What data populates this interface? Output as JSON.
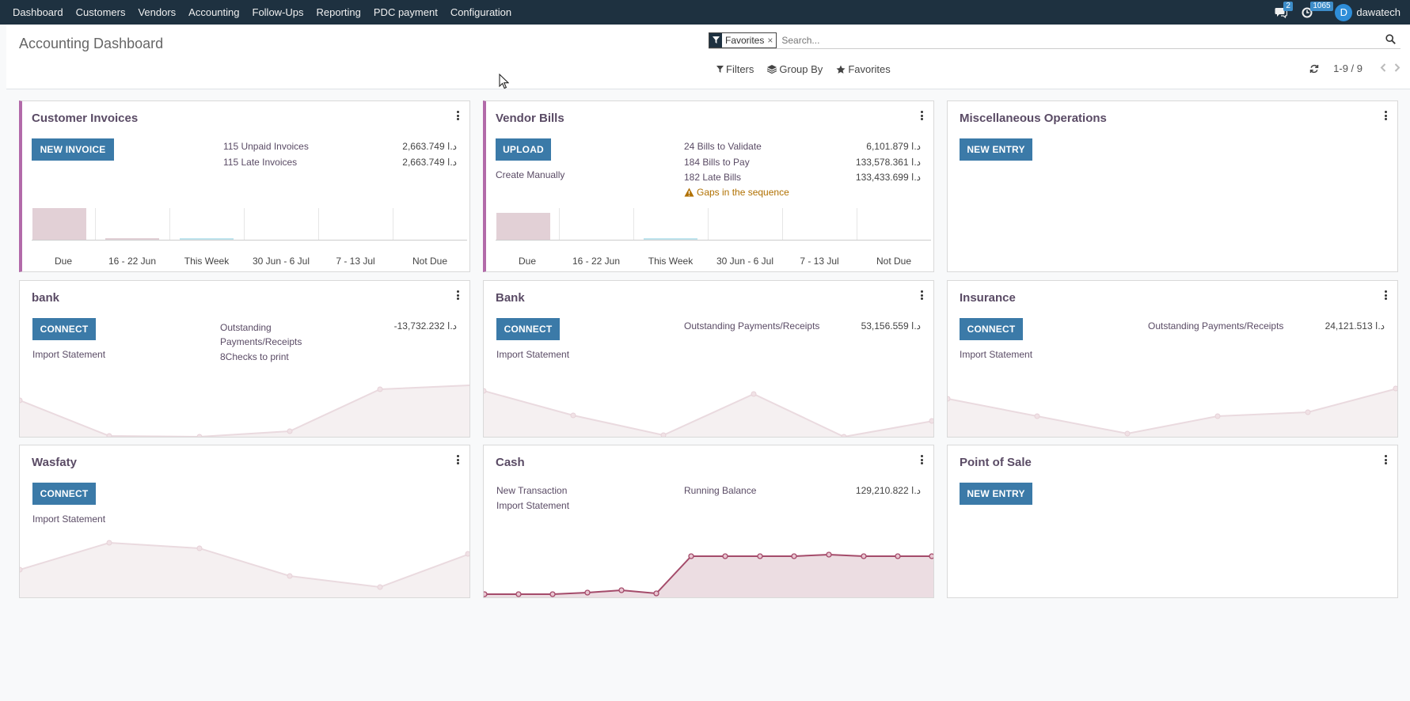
{
  "nav": {
    "items": [
      "Dashboard",
      "Customers",
      "Vendors",
      "Accounting",
      "Follow-Ups",
      "Reporting",
      "PDC payment",
      "Configuration"
    ],
    "messages_count": "2",
    "activities_count": "1065",
    "user_initial": "D",
    "user_name": "dawatech"
  },
  "control": {
    "title": "Accounting Dashboard",
    "facet_label": "Favorites",
    "facet_remove": "×",
    "search_placeholder": "Search...",
    "filters_label": "Filters",
    "groupby_label": "Group By",
    "favorites_label": "Favorites",
    "pager": "1-9 / 9"
  },
  "cards": {
    "customer_invoices": {
      "title": "Customer Invoices",
      "button": "NEW INVOICE",
      "stats": [
        {
          "label": "115 Unpaid Invoices",
          "value": "2,663.749 د.ا"
        },
        {
          "label": "115 Late Invoices",
          "value": "2,663.749 د.ا"
        }
      ],
      "chart_labels": [
        "Due",
        "16 - 22 Jun",
        "This Week",
        "30 Jun - 6 Jul",
        "7 - 13 Jul",
        "Not Due"
      ]
    },
    "vendor_bills": {
      "title": "Vendor Bills",
      "button": "UPLOAD",
      "link": "Create Manually",
      "stats": [
        {
          "label": "24 Bills to Validate",
          "value": "6,101.879 د.ا"
        },
        {
          "label": "184 Bills to Pay",
          "value": "133,578.361 د.ا"
        },
        {
          "label": "182 Late Bills",
          "value": "133,433.699 د.ا"
        }
      ],
      "warning": "Gaps in the sequence",
      "chart_labels": [
        "Due",
        "16 - 22 Jun",
        "This Week",
        "30 Jun - 6 Jul",
        "7 - 13 Jul",
        "Not Due"
      ]
    },
    "misc": {
      "title": "Miscellaneous Operations",
      "button": "NEW ENTRY"
    },
    "bank_lower": {
      "title": "bank",
      "button": "CONNECT",
      "link": "Import Statement",
      "stat_label": "Outstanding Payments/Receipts",
      "stat_value": "-13,732.232 د.ا",
      "checks": "8Checks to print"
    },
    "bank": {
      "title": "Bank",
      "button": "CONNECT",
      "link": "Import Statement",
      "stat_label": "Outstanding Payments/Receipts",
      "stat_value": "53,156.559 د.ا"
    },
    "insurance": {
      "title": "Insurance",
      "button": "CONNECT",
      "link": "Import Statement",
      "stat_label": "Outstanding Payments/Receipts",
      "stat_value": "24,121.513 د.ا"
    },
    "wasfaty": {
      "title": "Wasfaty",
      "button": "CONNECT",
      "link": "Import Statement"
    },
    "cash": {
      "title": "Cash",
      "link1": "New Transaction",
      "link2": "Import Statement",
      "stat_label": "Running Balance",
      "stat_value": "129,210.822 د.ا"
    },
    "pos": {
      "title": "Point of Sale",
      "button": "NEW ENTRY"
    }
  },
  "colors": {
    "nav_bg": "#1e3140",
    "primary_button": "#3b7aa8",
    "accent": "#b26aa9",
    "title": "#5a4b65",
    "warning": "#b07000"
  }
}
